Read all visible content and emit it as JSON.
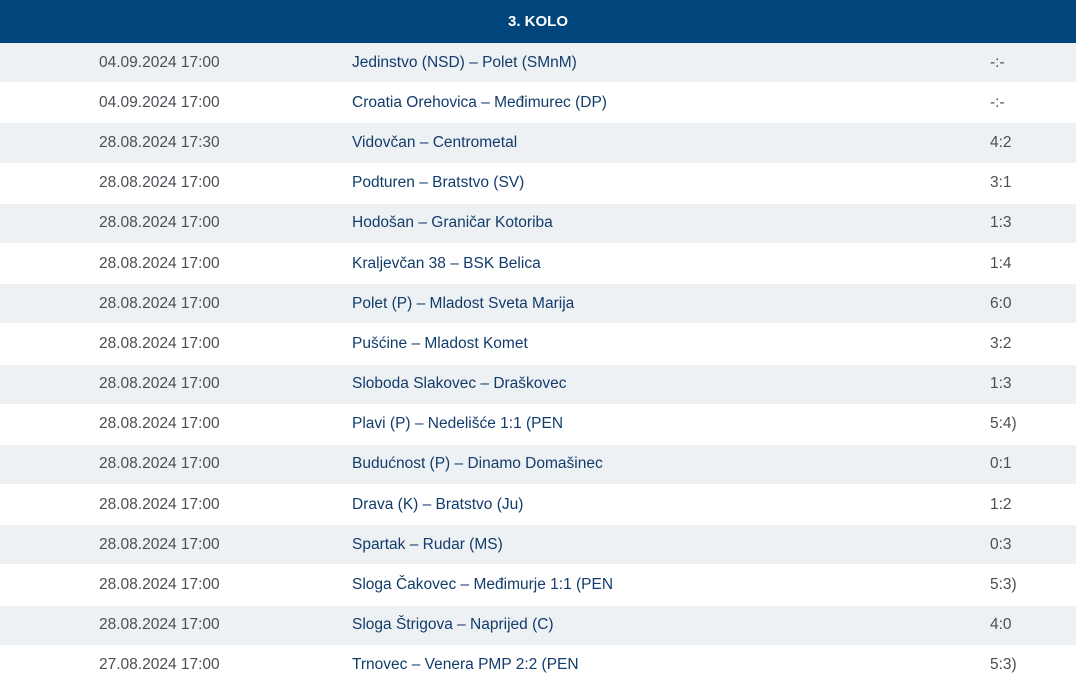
{
  "round": {
    "title": "3. KOLO"
  },
  "matches": [
    {
      "date": "04.09.2024 17:00",
      "match": "Jedinstvo (NSD) – Polet (SMnM)",
      "score": "-:-"
    },
    {
      "date": "04.09.2024 17:00",
      "match": "Croatia Orehovica – Međimurec (DP)",
      "score": "-:-"
    },
    {
      "date": "28.08.2024 17:30",
      "match": "Vidovčan – Centrometal",
      "score": "4:2"
    },
    {
      "date": "28.08.2024 17:00",
      "match": "Podturen – Bratstvo (SV)",
      "score": "3:1"
    },
    {
      "date": "28.08.2024 17:00",
      "match": "Hodošan – Graničar Kotoriba",
      "score": "1:3"
    },
    {
      "date": "28.08.2024 17:00",
      "match": "Kraljevčan 38 – BSK Belica",
      "score": "1:4"
    },
    {
      "date": "28.08.2024 17:00",
      "match": "Polet (P) – Mladost Sveta Marija",
      "score": "6:0"
    },
    {
      "date": "28.08.2024 17:00",
      "match": "Pušćine – Mladost Komet",
      "score": "3:2"
    },
    {
      "date": "28.08.2024 17:00",
      "match": "Sloboda Slakovec – Draškovec",
      "score": "1:3"
    },
    {
      "date": "28.08.2024 17:00",
      "match": "Plavi (P) – Nedelišće 1:1 (PEN",
      "score": "5:4)"
    },
    {
      "date": "28.08.2024 17:00",
      "match": "Budućnost (P) – Dinamo Domašinec",
      "score": "0:1"
    },
    {
      "date": "28.08.2024 17:00",
      "match": "Drava (K) – Bratstvo (Ju)",
      "score": "1:2"
    },
    {
      "date": "28.08.2024 17:00",
      "match": "Spartak – Rudar (MS)",
      "score": "0:3"
    },
    {
      "date": "28.08.2024 17:00",
      "match": "Sloga Čakovec – Međimurje 1:1 (PEN",
      "score": "5:3)"
    },
    {
      "date": "28.08.2024 17:00",
      "match": "Sloga Štrigova – Naprijed (C)",
      "score": "4:0"
    },
    {
      "date": "27.08.2024 17:00",
      "match": "Trnovec – Venera PMP 2:2 (PEN",
      "score": "5:3)"
    }
  ]
}
